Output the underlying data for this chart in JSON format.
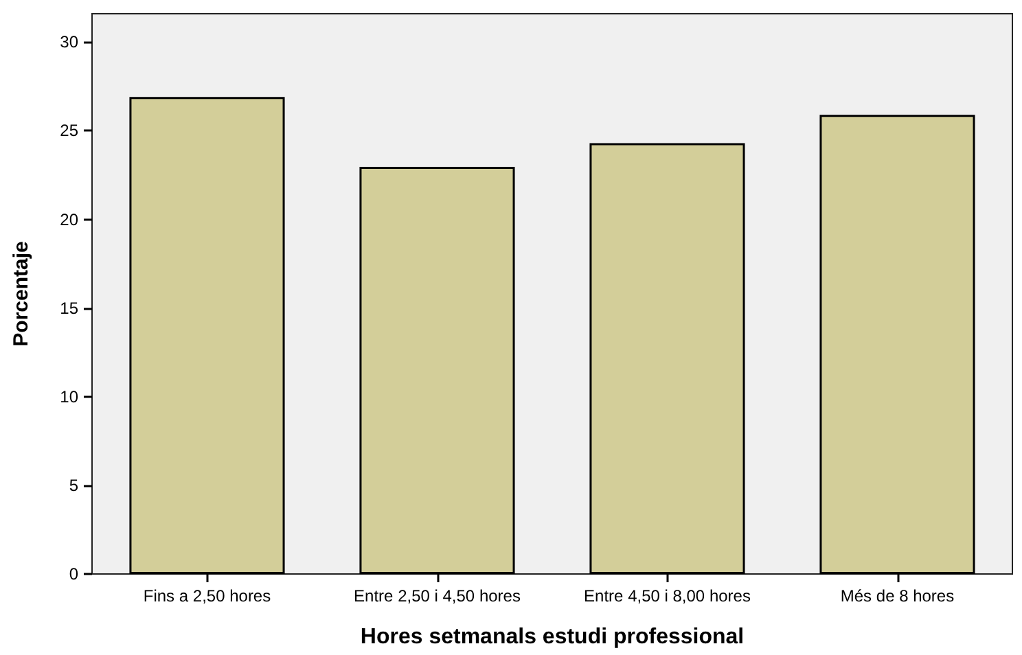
{
  "chart_data": {
    "type": "bar",
    "xlabel": "Hores setmanals estudi professional",
    "ylabel": "Porcentaje",
    "categories": [
      "Fins a 2,50 hores",
      "Entre 2,50 i 4,50 hores",
      "Entre 4,50 i 8,00 hores",
      "Més de 8 hores"
    ],
    "values": [
      26.9,
      22.96,
      24.3,
      25.9
    ],
    "color": "#d3ce99",
    "ylim": [
      0,
      31.6
    ],
    "yticks": [
      0,
      5,
      10,
      15,
      20,
      25,
      30
    ],
    "grid": false
  }
}
